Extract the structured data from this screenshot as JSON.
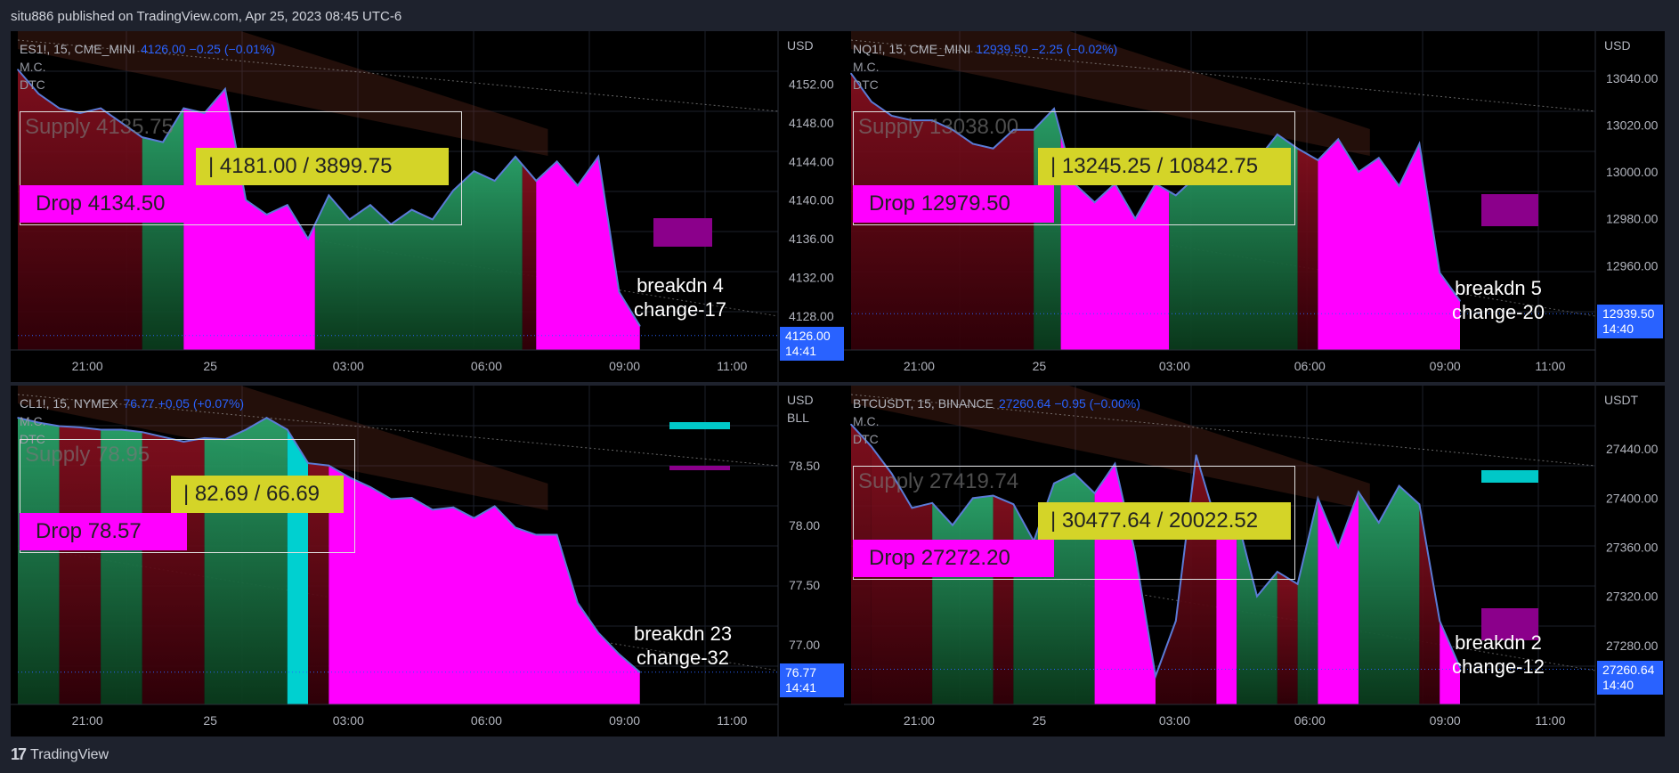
{
  "header": {
    "published": "situ886 published on TradingView.com, Apr 25, 2023 08:45 UTC-6"
  },
  "footer": {
    "brand": "TradingView",
    "logo_glyph": "17"
  },
  "indicators": [
    "M.C.",
    "DTC"
  ],
  "colors": {
    "green": "#1f8a52",
    "magenta": "#ff00ff",
    "yellow": "#d4d428",
    "blue_tag": "#2962ff",
    "cyan": "#00c8c8",
    "purple": "#8b008b",
    "line": "#5b7bd6"
  },
  "panels": [
    {
      "symbol": "ES1!, 15, CME_MINI",
      "price": "4126.00",
      "change": "−0.25 (−0.01%)",
      "currency": "USD",
      "unit": "",
      "y_ticks": [
        "4152.00",
        "4148.00",
        "4144.00",
        "4140.00",
        "4136.00",
        "4132.00",
        "4128.00"
      ],
      "x_ticks": [
        "21:00",
        "25",
        "03:00",
        "06:00",
        "09:00",
        "11:00"
      ],
      "last_price": "4126.00",
      "last_time": "14:41",
      "supply_label": "Supply 4135.75",
      "range_label": "|   4181.00 / 3899.75",
      "drop_label": "Drop  4134.50",
      "annot_line1": "breakdn 4",
      "annot_line2": "change-17",
      "chart_data": {
        "type": "area",
        "ylim": [
          4124.5,
          4156.0
        ],
        "x": [
          0,
          3,
          6,
          9,
          12,
          15,
          18,
          21,
          24,
          27,
          30,
          33,
          36,
          39,
          42,
          45,
          48,
          51,
          54,
          57,
          60,
          63,
          66,
          69,
          72,
          75,
          78,
          81,
          84,
          87,
          90
        ],
        "y": [
          4153.5,
          4151.0,
          4149.5,
          4149.0,
          4149.5,
          4148.0,
          4146.5,
          4146.0,
          4149.5,
          4149.0,
          4151.5,
          4140.0,
          4138.5,
          4139.5,
          4136.0,
          4140.5,
          4138.0,
          4139.5,
          4137.5,
          4139.0,
          4138.0,
          4141.0,
          4143.0,
          4142.0,
          4144.5,
          4142.0,
          4144.0,
          4141.5,
          4144.5,
          4130.5,
          4127.0
        ]
      }
    },
    {
      "symbol": "NQ1!, 15, CME_MINI",
      "price": "12939.50",
      "change": "−2.25 (−0.02%)",
      "currency": "USD",
      "unit": "",
      "y_ticks": [
        "13040.00",
        "13020.00",
        "13000.00",
        "12980.00",
        "12960.00"
      ],
      "x_ticks": [
        "21:00",
        "25",
        "03:00",
        "06:00",
        "09:00",
        "11:00"
      ],
      "last_price": "12939.50",
      "last_time": "14:40",
      "supply_label": "Supply 13038.00",
      "range_label": "|   13245.25 / 10842.75",
      "drop_label": "Drop  12979.50",
      "annot_line1": "breakdn 5",
      "annot_line2": "change-20",
      "chart_data": {
        "type": "area",
        "ylim": [
          12924.0,
          13054.0
        ],
        "x": [
          0,
          3,
          6,
          9,
          12,
          15,
          18,
          21,
          24,
          27,
          30,
          33,
          36,
          39,
          42,
          45,
          48,
          51,
          54,
          57,
          60,
          63,
          66,
          69,
          72,
          75,
          78,
          81,
          84,
          87,
          90
        ],
        "y": [
          13042.0,
          13030.0,
          13024.0,
          13022.0,
          13022.0,
          13018.0,
          13012.0,
          13010.0,
          13018.0,
          13018.0,
          13027.0,
          12995.0,
          12987.0,
          12995.0,
          12980.0,
          12995.0,
          12990.0,
          12998.0,
          12998.0,
          13003.0,
          13005.0,
          13016.0,
          13010.0,
          13005.0,
          13014.0,
          13000.0,
          13006.0,
          12994.0,
          13012.0,
          12957.0,
          12945.0
        ]
      }
    },
    {
      "symbol": "CL1!, 15, NYMEX",
      "price": "76.77",
      "change": "+0.05 (+0.07%)",
      "currency": "USD",
      "unit": "BLL",
      "y_ticks": [
        "78.50",
        "78.00",
        "77.50",
        "77.00"
      ],
      "x_ticks": [
        "21:00",
        "25",
        "03:00",
        "06:00",
        "09:00",
        "11:00"
      ],
      "last_price": "76.77",
      "last_time": "14:41",
      "supply_label": "Supply 78.95",
      "range_label": "|   82.69 / 66.69",
      "drop_label": "Drop  78.57",
      "annot_line1": "breakdn 23",
      "annot_line2": "change-32",
      "chart_data": {
        "type": "area",
        "ylim": [
          76.5,
          79.05
        ],
        "x": [
          0,
          3,
          6,
          9,
          12,
          15,
          18,
          21,
          24,
          27,
          30,
          33,
          36,
          39,
          42,
          45,
          48,
          51,
          54,
          57,
          60,
          63,
          66,
          69,
          72,
          75,
          78,
          81,
          84,
          87,
          90
        ],
        "y": [
          78.9,
          78.86,
          78.83,
          78.82,
          78.8,
          78.8,
          78.78,
          78.74,
          78.7,
          78.73,
          78.72,
          78.8,
          78.9,
          78.8,
          78.52,
          78.5,
          78.4,
          78.32,
          78.22,
          78.23,
          78.13,
          78.15,
          78.06,
          78.16,
          77.98,
          77.92,
          77.92,
          77.35,
          77.1,
          76.92,
          76.77
        ]
      }
    },
    {
      "symbol": "BTCUSDT, 15, BINANCE",
      "price": "27260.64",
      "change": "−0.95 (−0.00%)",
      "currency": "USDT",
      "unit": "",
      "y_ticks": [
        "27440.00",
        "27400.00",
        "27360.00",
        "27320.00",
        "27280.00"
      ],
      "x_ticks": [
        "21:00",
        "25",
        "03:00",
        "06:00",
        "09:00",
        "11:00"
      ],
      "last_price": "27260.64",
      "last_time": "14:40",
      "supply_label": "Supply 27419.74",
      "range_label": "|   30477.64 / 20022.52",
      "drop_label": "Drop  27272.20",
      "annot_line1": "breakdn 2",
      "annot_line2": "change-12",
      "chart_data": {
        "type": "area",
        "ylim": [
          27232.0,
          27480.0
        ],
        "x": [
          0,
          3,
          6,
          9,
          12,
          15,
          18,
          21,
          24,
          27,
          30,
          33,
          36,
          39,
          42,
          45,
          48,
          51,
          54,
          57,
          60,
          63,
          66,
          69,
          72,
          75,
          78,
          81,
          84,
          87,
          90
        ],
        "y": [
          27460.0,
          27442.0,
          27420.0,
          27392.0,
          27396.0,
          27378.0,
          27400.0,
          27402.0,
          27395.0,
          27365.0,
          27412.0,
          27420.0,
          27404.0,
          27428.0,
          27355.0,
          27255.0,
          27300.0,
          27435.0,
          27380.0,
          27385.0,
          27320.0,
          27340.0,
          27330.0,
          27400.0,
          27360.0,
          27405.0,
          27380.0,
          27410.0,
          27395.0,
          27300.0,
          27262.0
        ]
      }
    }
  ]
}
